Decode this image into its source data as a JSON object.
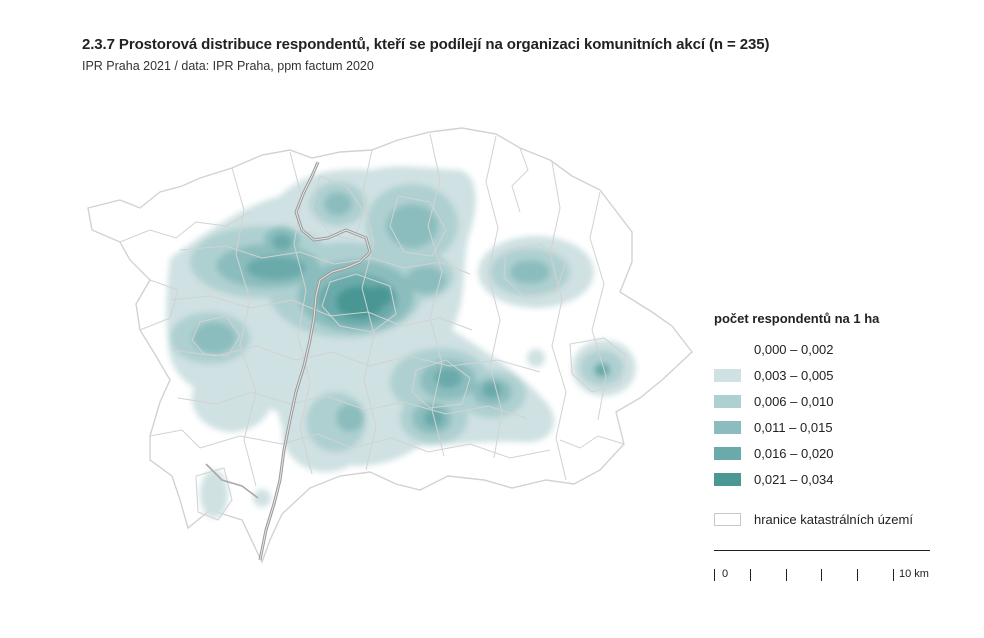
{
  "header": {
    "title": "2.3.7 Prostorová distribuce respondentů, kteří se podílejí na organizaci komunitních akcí (n = 235)",
    "subtitle": "IPR Praha 2021 / data: IPR Praha, ppm factum 2020"
  },
  "legend": {
    "title": "počet respondentů na 1 ha",
    "classes": [
      {
        "label": "0,000 – 0,002",
        "color": "#ffffff"
      },
      {
        "label": "0,003 – 0,005",
        "color": "#cfe1e2"
      },
      {
        "label": "0,006 – 0,010",
        "color": "#afd0d1"
      },
      {
        "label": "0,011 – 0,015",
        "color": "#8cbdbe"
      },
      {
        "label": "0,016 – 0,020",
        "color": "#6aaaaa"
      },
      {
        "label": "0,021 – 0,034",
        "color": "#4a9794"
      }
    ],
    "boundary_label": "hranice katastrálních území"
  },
  "scale": {
    "start_label": "0",
    "end_label": "10 km"
  },
  "colors": {
    "river": "#9a9a9a",
    "boundaries": "#d2d2d2",
    "text": "#222222"
  }
}
